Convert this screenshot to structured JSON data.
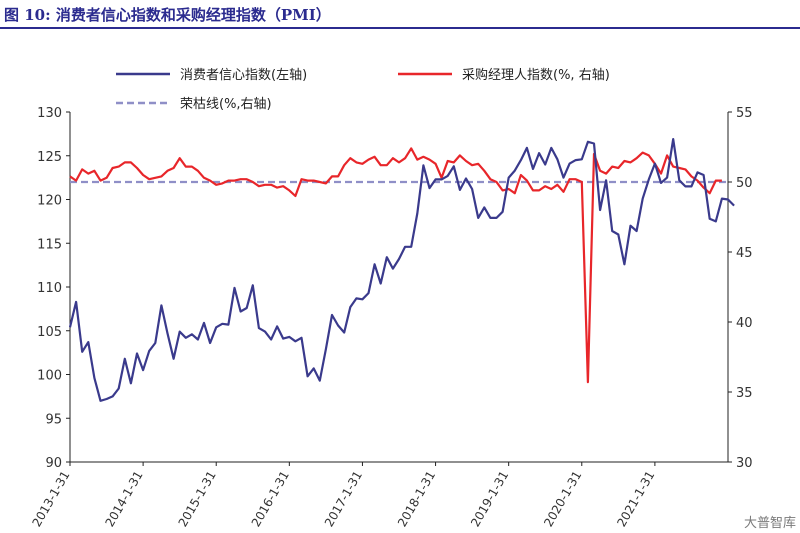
{
  "header": {
    "figure_label": "图 10:",
    "title": "消费者信心指数和采购经理指数（PMI）"
  },
  "watermark": "大普智库",
  "chart_data": {
    "type": "line",
    "title": "消费者信心指数和采购经理指数（PMI）",
    "x_tick_labels": [
      "2013-1-31",
      "2014-1-31",
      "2015-1-31",
      "2016-1-31",
      "2017-1-31",
      "2018-1-31",
      "2019-1-31",
      "2020-1-31",
      "2021-1-31"
    ],
    "y_left": {
      "ylim": [
        90,
        130
      ],
      "ticks": [
        90,
        95,
        100,
        105,
        110,
        115,
        120,
        125,
        130
      ]
    },
    "y_right": {
      "ylim": [
        30,
        55
      ],
      "ticks": [
        30,
        35,
        40,
        45,
        50,
        55
      ]
    },
    "legend": [
      "消费者信心指数(左轴)",
      "采购经理人指数(%, 右轴)",
      "荣枯线(%,右轴)"
    ],
    "colors": {
      "cci": "#3a3a8c",
      "pmi": "#e8262a",
      "threshold": "#8f8fc7"
    },
    "x_start": "2013-01",
    "series": [
      {
        "name": "消费者信心指数(左轴)",
        "axis": "left",
        "values": [
          105.4,
          108.3,
          102.6,
          103.7,
          99.6,
          97.0,
          97.2,
          97.5,
          98.4,
          101.8,
          99.0,
          102.4,
          100.5,
          102.7,
          103.6,
          107.9,
          104.7,
          101.8,
          104.9,
          104.2,
          104.6,
          104.0,
          105.9,
          103.6,
          105.4,
          105.8,
          105.7,
          109.9,
          107.2,
          107.6,
          110.2,
          105.3,
          104.9,
          104.0,
          105.5,
          104.1,
          104.3,
          103.8,
          104.2,
          99.8,
          100.7,
          99.3,
          102.9,
          106.8,
          105.6,
          104.8,
          107.7,
          108.7,
          108.6,
          109.3,
          112.6,
          110.4,
          113.4,
          112.1,
          113.2,
          114.6,
          114.6,
          118.4,
          123.9,
          121.3,
          122.3,
          122.3,
          122.7,
          123.8,
          121.1,
          122.4,
          121.2,
          117.9,
          119.1,
          117.9,
          117.9,
          118.6,
          122.5,
          123.3,
          124.5,
          125.9,
          123.5,
          125.3,
          124.0,
          125.9,
          124.6,
          122.5,
          124.1,
          124.5,
          124.6,
          126.6,
          126.4,
          118.8,
          122.2,
          116.4,
          116.0,
          112.6,
          117.0,
          116.4,
          120.1,
          122.3,
          124.1,
          121.9,
          122.5,
          126.9,
          122.2,
          121.5,
          121.5,
          123.1,
          122.8,
          117.8,
          117.5,
          120.1,
          120.0,
          119.3
        ]
      },
      {
        "name": "采购经理人指数(%, 右轴)",
        "axis": "right",
        "values": [
          50.4,
          50.1,
          50.9,
          50.6,
          50.8,
          50.1,
          50.3,
          51.0,
          51.1,
          51.4,
          51.4,
          51.0,
          50.5,
          50.2,
          50.3,
          50.4,
          50.8,
          51.0,
          51.7,
          51.1,
          51.1,
          50.8,
          50.3,
          50.1,
          49.8,
          49.9,
          50.1,
          50.1,
          50.2,
          50.2,
          50.0,
          49.7,
          49.8,
          49.8,
          49.6,
          49.7,
          49.4,
          49.0,
          50.2,
          50.1,
          50.1,
          50.0,
          49.9,
          50.4,
          50.4,
          51.2,
          51.7,
          51.4,
          51.3,
          51.6,
          51.8,
          51.2,
          51.2,
          51.7,
          51.4,
          51.7,
          52.4,
          51.6,
          51.8,
          51.6,
          51.3,
          50.3,
          51.5,
          51.4,
          51.9,
          51.5,
          51.2,
          51.3,
          50.8,
          50.2,
          50.0,
          49.4,
          49.5,
          49.2,
          50.5,
          50.1,
          49.4,
          49.4,
          49.7,
          49.5,
          49.8,
          49.3,
          50.2,
          50.2,
          50.0,
          35.7,
          52.0,
          50.8,
          50.6,
          51.1,
          51.0,
          51.5,
          51.4,
          51.7,
          52.1,
          51.9,
          51.3,
          50.6,
          51.9,
          51.1,
          51.0,
          50.9,
          50.4,
          50.1,
          49.6,
          49.2,
          50.1,
          50.1
        ]
      },
      {
        "name": "荣枯线(%,右轴)",
        "axis": "right",
        "values": [
          50
        ]
      }
    ]
  }
}
